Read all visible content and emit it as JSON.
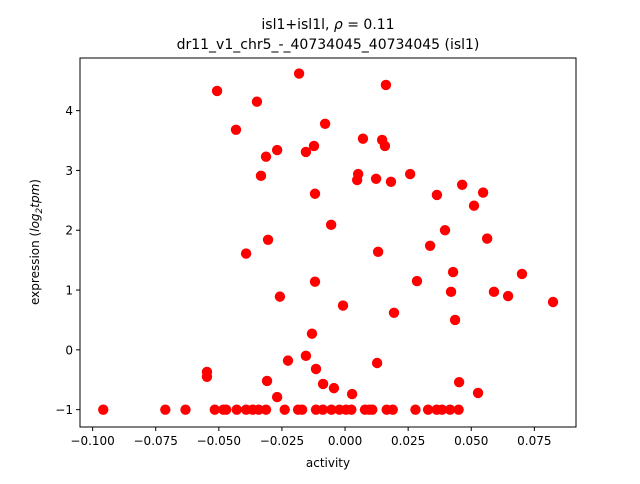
{
  "chart_data": {
    "type": "scatter",
    "title_line1": {
      "prefix": "isl1+isl1l, ",
      "symbol": "ρ",
      "suffix": " = 0.11"
    },
    "title_line2": "dr11_v1_chr5_-_40734045_40734045 (isl1)",
    "xlabel": "activity",
    "ylabel": {
      "prefix": "expression (",
      "log": "log",
      "sub": "2",
      "tpm": "tpm",
      "suffix": ")"
    },
    "xlim": [
      -0.105,
      0.0915
    ],
    "ylim": [
      -1.29,
      4.88
    ],
    "xticks": [
      {
        "value": -0.1,
        "label": "−0.100"
      },
      {
        "value": -0.075,
        "label": "−0.075"
      },
      {
        "value": -0.05,
        "label": "−0.050"
      },
      {
        "value": -0.025,
        "label": "−0.025"
      },
      {
        "value": 0.0,
        "label": "0.000"
      },
      {
        "value": 0.025,
        "label": "0.025"
      },
      {
        "value": 0.05,
        "label": "0.050"
      },
      {
        "value": 0.075,
        "label": "0.075"
      }
    ],
    "yticks": [
      {
        "value": -1,
        "label": "−1"
      },
      {
        "value": 0,
        "label": "0"
      },
      {
        "value": 1,
        "label": "1"
      },
      {
        "value": 2,
        "label": "2"
      },
      {
        "value": 3,
        "label": "3"
      },
      {
        "value": 4,
        "label": "4"
      }
    ],
    "grid": false,
    "marker_color": "#ff0000",
    "points": [
      [
        -0.0507,
        4.33
      ],
      [
        -0.0182,
        4.62
      ],
      [
        -0.0349,
        4.15
      ],
      [
        -0.0432,
        3.68
      ],
      [
        -0.0079,
        3.78
      ],
      [
        -0.0269,
        3.34
      ],
      [
        -0.0313,
        3.23
      ],
      [
        -0.0155,
        3.31
      ],
      [
        -0.0123,
        3.41
      ],
      [
        -0.0333,
        2.91
      ],
      [
        -0.0119,
        2.61
      ],
      [
        -0.0055,
        2.09
      ],
      [
        -0.0305,
        1.84
      ],
      [
        0.0162,
        4.43
      ],
      [
        0.0071,
        3.53
      ],
      [
        0.0147,
        3.51
      ],
      [
        0.0158,
        3.41
      ],
      [
        0.0052,
        2.94
      ],
      [
        0.0048,
        2.84
      ],
      [
        0.0123,
        2.86
      ],
      [
        0.0182,
        2.81
      ],
      [
        0.0258,
        2.94
      ],
      [
        0.0364,
        2.59
      ],
      [
        0.0464,
        2.76
      ],
      [
        0.0547,
        2.63
      ],
      [
        0.0511,
        2.41
      ],
      [
        0.0396,
        2.0
      ],
      [
        0.0563,
        1.86
      ],
      [
        0.0337,
        1.74
      ],
      [
        0.0131,
        1.64
      ],
      [
        -0.0392,
        1.61
      ],
      [
        -0.0119,
        1.14
      ],
      [
        -0.0258,
        0.89
      ],
      [
        -0.0008,
        0.74
      ],
      [
        -0.0131,
        0.27
      ],
      [
        -0.0155,
        -0.1
      ],
      [
        -0.0226,
        -0.18
      ],
      [
        -0.0115,
        -0.32
      ],
      [
        -0.0547,
        -0.37
      ],
      [
        -0.0547,
        -0.45
      ],
      [
        -0.0309,
        -0.52
      ],
      [
        -0.0087,
        -0.57
      ],
      [
        -0.0044,
        -0.64
      ],
      [
        -0.0269,
        -0.79
      ],
      [
        0.0028,
        -0.74
      ],
      [
        0.0428,
        1.3
      ],
      [
        0.0701,
        1.27
      ],
      [
        0.0285,
        1.15
      ],
      [
        0.042,
        0.97
      ],
      [
        0.059,
        0.97
      ],
      [
        0.0646,
        0.9
      ],
      [
        0.0824,
        0.8
      ],
      [
        0.0194,
        0.62
      ],
      [
        0.0436,
        0.5
      ],
      [
        0.0127,
        -0.22
      ],
      [
        0.0452,
        -0.54
      ],
      [
        0.0527,
        -0.72
      ],
      [
        -0.0958,
        -1
      ],
      [
        -0.0712,
        -1
      ],
      [
        -0.0632,
        -1
      ],
      [
        -0.0516,
        -1
      ],
      [
        -0.0482,
        -1
      ],
      [
        -0.0471,
        -1
      ],
      [
        -0.0429,
        -1
      ],
      [
        -0.0392,
        -1
      ],
      [
        -0.0366,
        -1
      ],
      [
        -0.0342,
        -1
      ],
      [
        -0.0313,
        -1
      ],
      [
        -0.0239,
        -1
      ],
      [
        -0.0186,
        -1
      ],
      [
        -0.017,
        -1
      ],
      [
        -0.0115,
        -1
      ],
      [
        -0.0088,
        -1
      ],
      [
        -0.0054,
        -1
      ],
      [
        -0.0022,
        -1
      ],
      [
        0.0004,
        -1
      ],
      [
        0.0025,
        -1
      ],
      [
        0.0079,
        -1
      ],
      [
        0.0096,
        -1
      ],
      [
        0.0108,
        -1
      ],
      [
        0.0165,
        -1
      ],
      [
        0.0189,
        -1
      ],
      [
        0.0279,
        -1
      ],
      [
        0.0329,
        -1
      ],
      [
        0.0363,
        -1
      ],
      [
        0.0384,
        -1
      ],
      [
        0.0416,
        -1
      ],
      [
        0.045,
        -1
      ]
    ]
  }
}
